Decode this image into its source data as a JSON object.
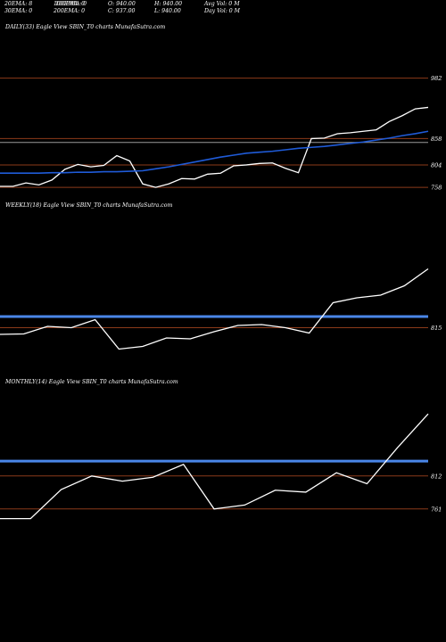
{
  "header": {
    "ema20": "20EMA: 8",
    "ema30": "30EMA: 0",
    "ema100": "100EMA: 0",
    "ema200": "200EMA: 0",
    "ema100_overlay": "100EMA: 0",
    "open": "O: 940.00",
    "close": "C: 937.00",
    "high": "H: 940.00",
    "low": "L: 940.00",
    "avgvol": "Avg Vol: 0  M",
    "dayvol": "Day Vol: 0  M"
  },
  "colors": {
    "background": "#000000",
    "price_line": "#ffffff",
    "ema_line": "#1f5bd8",
    "ema_band": "#4a86e8",
    "level_line": "#8b3a1a",
    "text": "#ffffff"
  },
  "chart_data": [
    {
      "type": "line",
      "title": "DAILY(33) Eagle  View  SBIN_T0  charts MunafaSutra.com",
      "yticks": [
        982,
        858,
        804,
        758
      ],
      "ylim": [
        749,
        996
      ],
      "levels": [
        982,
        858,
        850,
        804,
        758
      ],
      "series": [
        {
          "values": [
            760,
            760,
            767,
            763,
            773,
            795,
            805,
            800,
            803,
            823,
            812,
            765,
            758,
            765,
            776,
            775,
            785,
            787,
            802,
            804,
            807,
            808,
            797,
            788,
            858,
            859,
            868,
            870,
            873,
            876,
            893,
            905,
            919,
            922
          ]
        },
        {
          "values": [
            787,
            787,
            787,
            787,
            788,
            788,
            789,
            789,
            790,
            790,
            791,
            792,
            796,
            800,
            805,
            810,
            815,
            820,
            824,
            828,
            830,
            832,
            835,
            838,
            840,
            842,
            845,
            848,
            851,
            855,
            859,
            864,
            868,
            873
          ]
        }
      ]
    },
    {
      "type": "line",
      "title": "WEEKLY(18) Eagle  View  SBIN_T0  charts MunafaSutra.com",
      "yticks": [
        815
      ],
      "ylim": [
        720,
        1000
      ],
      "levels": [
        815
      ],
      "band": 840,
      "series": [
        {
          "values": [
            800,
            801,
            818,
            815,
            833,
            767,
            773,
            792,
            790,
            806,
            820,
            822,
            815,
            803,
            871,
            882,
            888,
            909,
            947
          ]
        }
      ]
    },
    {
      "type": "line",
      "title": "MONTHLY(14) Eagle  View  SBIN_T0  charts MunafaSutra.com",
      "yticks": [
        812,
        761
      ],
      "ylim": [
        700,
        900
      ],
      "levels": [
        812,
        761
      ],
      "band": 835,
      "series": [
        {
          "values": [
            746,
            746,
            791,
            812,
            804,
            810,
            830,
            761,
            767,
            790,
            787,
            817,
            800,
            856,
            908
          ]
        }
      ]
    }
  ]
}
